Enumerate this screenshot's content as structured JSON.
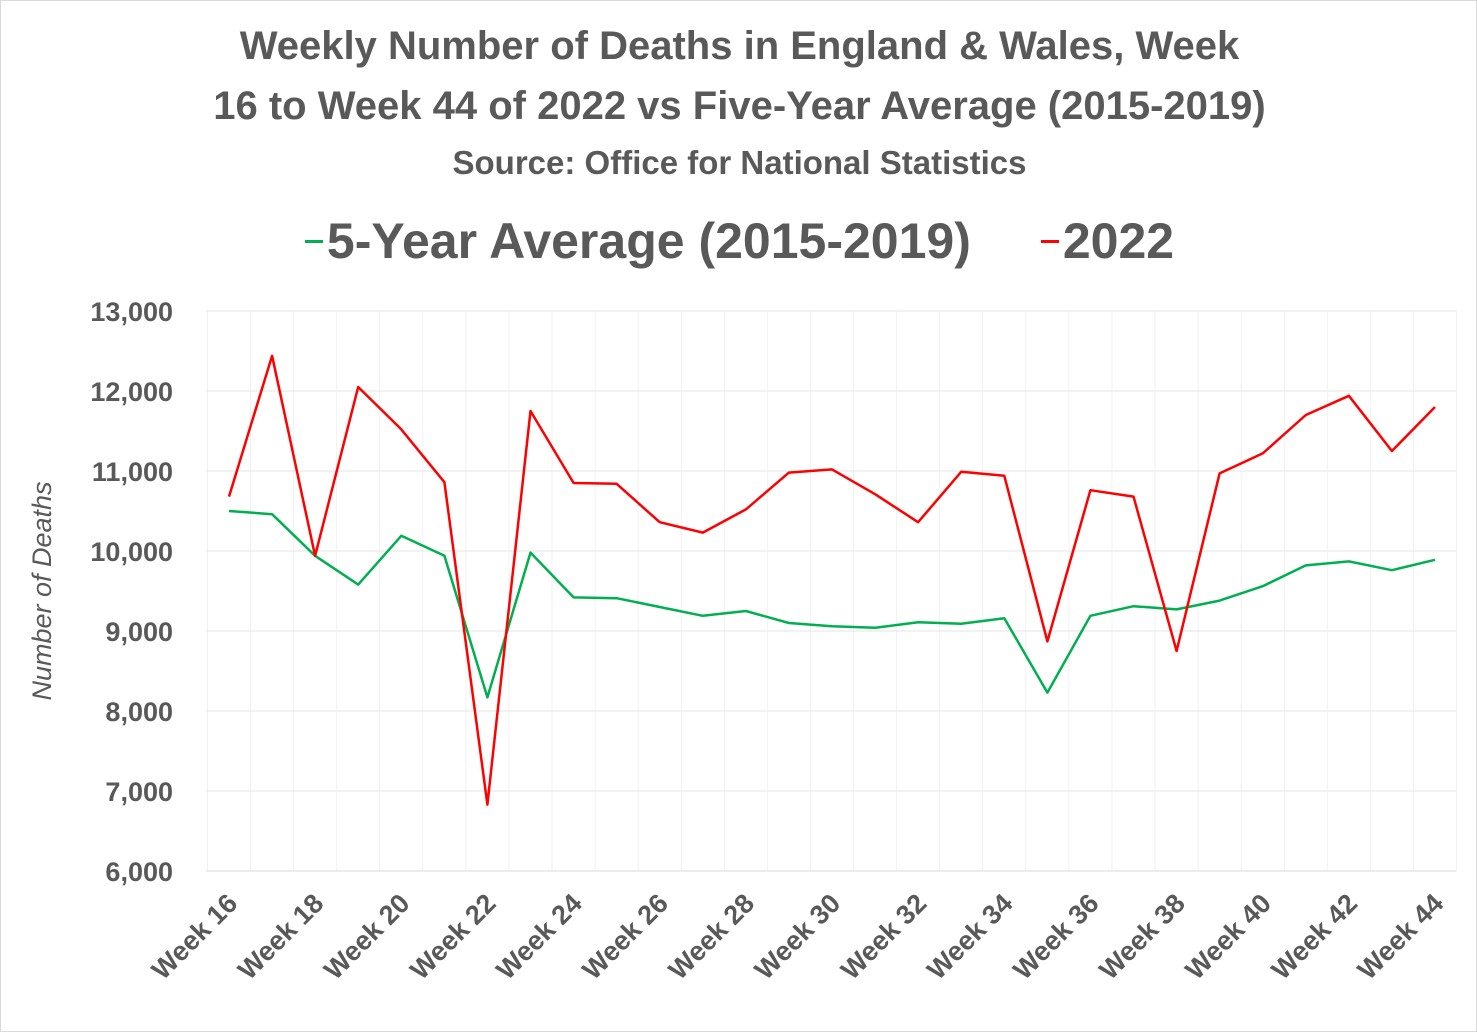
{
  "chart_data": {
    "type": "line",
    "title_line1": "Weekly Number of Deaths in England & Wales, Week",
    "title_line2": "16 to Week 44 of 2022 vs Five-Year Average (2015-2019)",
    "subtitle": "Source: Office for National Statistics",
    "xlabel": "",
    "ylabel": "Number of Deaths",
    "ylim": [
      6000,
      13000
    ],
    "yticks": [
      "6,000",
      "7,000",
      "8,000",
      "9,000",
      "10,000",
      "11,000",
      "12,000",
      "13,000"
    ],
    "ytick_values": [
      6000,
      7000,
      8000,
      9000,
      10000,
      11000,
      12000,
      13000
    ],
    "grid": true,
    "legend_position": "top-center",
    "x": [
      16,
      17,
      18,
      19,
      20,
      21,
      22,
      23,
      24,
      25,
      26,
      27,
      28,
      29,
      30,
      31,
      32,
      33,
      34,
      35,
      36,
      37,
      38,
      39,
      40,
      41,
      42,
      43,
      44
    ],
    "xtick_labels": [
      {
        "week": 16,
        "label": "Week 16"
      },
      {
        "week": 18,
        "label": "Week 18"
      },
      {
        "week": 20,
        "label": "Week 20"
      },
      {
        "week": 22,
        "label": "Week 22"
      },
      {
        "week": 24,
        "label": "Week 24"
      },
      {
        "week": 26,
        "label": "Week 26"
      },
      {
        "week": 28,
        "label": "Week 28"
      },
      {
        "week": 30,
        "label": "Week 30"
      },
      {
        "week": 32,
        "label": "Week 32"
      },
      {
        "week": 34,
        "label": "Week 34"
      },
      {
        "week": 36,
        "label": "Week 36"
      },
      {
        "week": 38,
        "label": "Week 38"
      },
      {
        "week": 40,
        "label": "Week 40"
      },
      {
        "week": 42,
        "label": "Week 42"
      },
      {
        "week": 44,
        "label": "Week 44"
      }
    ],
    "series": [
      {
        "name": "5-Year Average (2015-2019)",
        "color": "#00b050",
        "values": [
          10500,
          10460,
          9940,
          9580,
          10190,
          9940,
          8170,
          9980,
          9420,
          9410,
          9300,
          9190,
          9250,
          9100,
          9060,
          9040,
          9110,
          9090,
          9160,
          8230,
          9190,
          9310,
          9270,
          9380,
          9560,
          9820,
          9870,
          9760,
          9890
        ]
      },
      {
        "name": "2022",
        "color": "#ff0000",
        "values": [
          10680,
          12440,
          9940,
          12050,
          11520,
          10860,
          6830,
          11750,
          10850,
          10840,
          10360,
          10230,
          10520,
          10980,
          11020,
          10710,
          10360,
          10990,
          10940,
          8870,
          10760,
          10680,
          8750,
          10970,
          11220,
          11700,
          11940,
          11250,
          11800
        ]
      }
    ]
  }
}
